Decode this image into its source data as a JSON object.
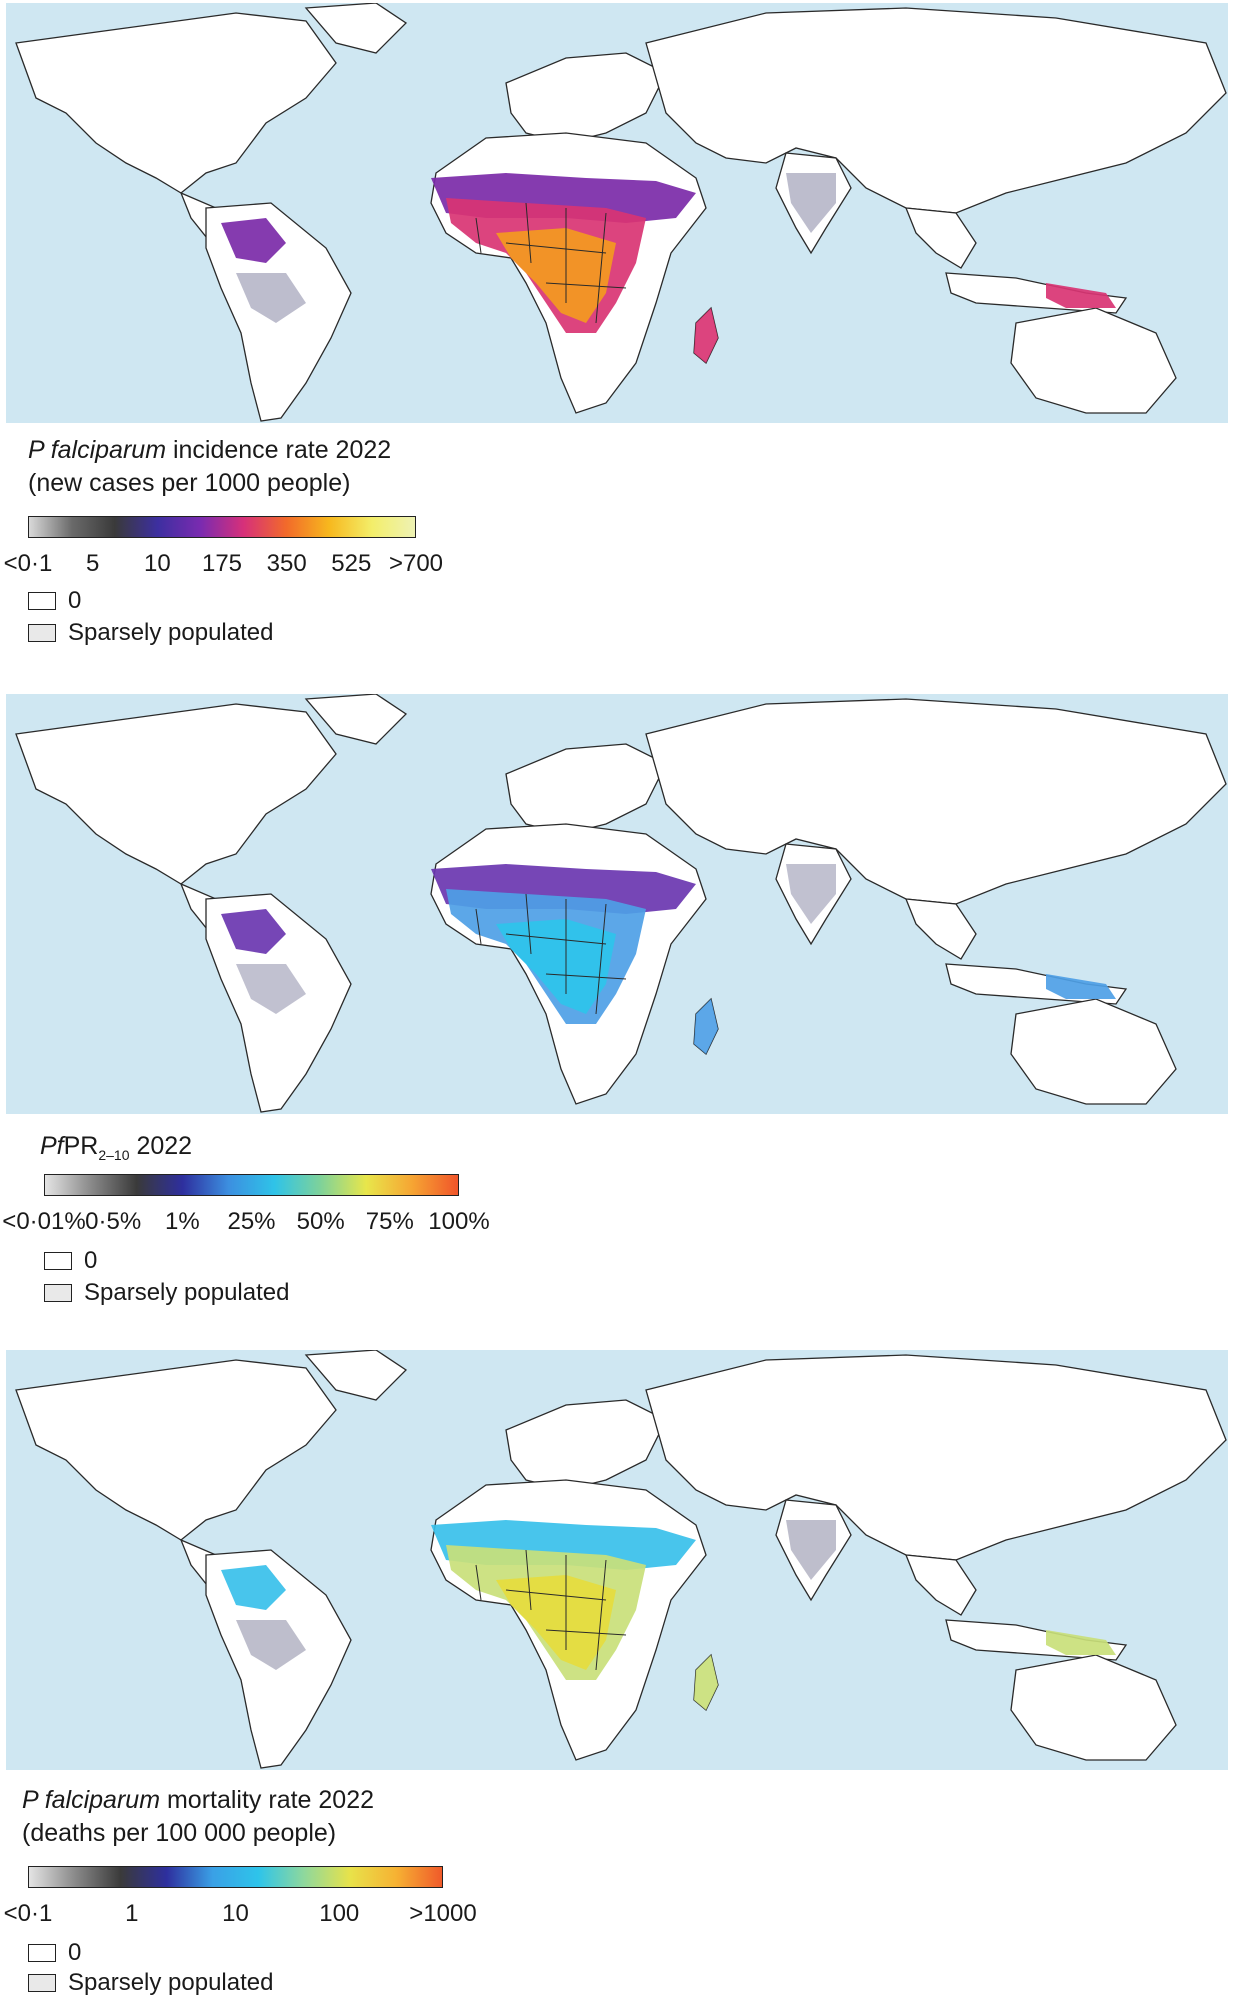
{
  "colors": {
    "ocean": "#cfe7f2",
    "land": "#ffffff",
    "border": "#2a2a2a",
    "sparse": "#e9e9e9"
  },
  "panels": [
    {
      "id": "incidence",
      "title_italic": "P falciparum",
      "title_rest": " incidence rate 2022",
      "title_line2": "(new cases per 1000 people)",
      "scale": [
        "#d9d9d9",
        "#6a6a6a",
        "#3a3a3a",
        "#3d2fa0",
        "#7a2bb0",
        "#d6307a",
        "#f26a2a",
        "#f7b81e",
        "#f3ee6a",
        "#eef2b4"
      ],
      "ticks": [
        "<0·1",
        "5",
        "10",
        "175",
        "350",
        "525",
        ">700"
      ],
      "legend_zero": "0",
      "legend_sparse": "Sparsely populated",
      "fill_palette": {
        "high": "#f39a1f",
        "mid": "#d93473",
        "low": "#7b2aa8",
        "vlow": "#b7b7c9"
      }
    },
    {
      "id": "prevalence",
      "title_italic": "Pf",
      "title_rest": "PR",
      "title_sub": "2–10",
      "title_tail": " 2022",
      "title_line2": "",
      "scale": [
        "#e4e4e4",
        "#8a8a8a",
        "#3a3a3a",
        "#2e2f9e",
        "#3c8fe0",
        "#2fc3e8",
        "#7ed29a",
        "#e8e64b",
        "#f6a533",
        "#f0552a"
      ],
      "ticks": [
        "<0·01%",
        "0·5%",
        "1%",
        "25%",
        "50%",
        "75%",
        "100%"
      ],
      "legend_zero": "0",
      "legend_sparse": "Sparsely populated",
      "fill_palette": {
        "high": "#2ec4ea",
        "mid": "#4ea0e6",
        "low": "#6a36b0",
        "vlow": "#bcbccc"
      }
    },
    {
      "id": "mortality",
      "title_italic": "P falciparum",
      "title_rest": " mortality rate 2022",
      "title_line2": "(deaths per 100 000 people)",
      "scale": [
        "#e4e4e4",
        "#8a8a8a",
        "#3a3a3a",
        "#2e2f9e",
        "#3aa0e6",
        "#2ec4ea",
        "#8fd89c",
        "#e8e24a",
        "#f6b233",
        "#f05a2a"
      ],
      "ticks": [
        "<0·1",
        "1",
        "10",
        "100",
        ">1000"
      ],
      "legend_zero": "0",
      "legend_sparse": "Sparsely populated",
      "fill_palette": {
        "high": "#e6dc3e",
        "mid": "#c9e07a",
        "low": "#38c0ea",
        "vlow": "#b9b9c8"
      }
    }
  ]
}
